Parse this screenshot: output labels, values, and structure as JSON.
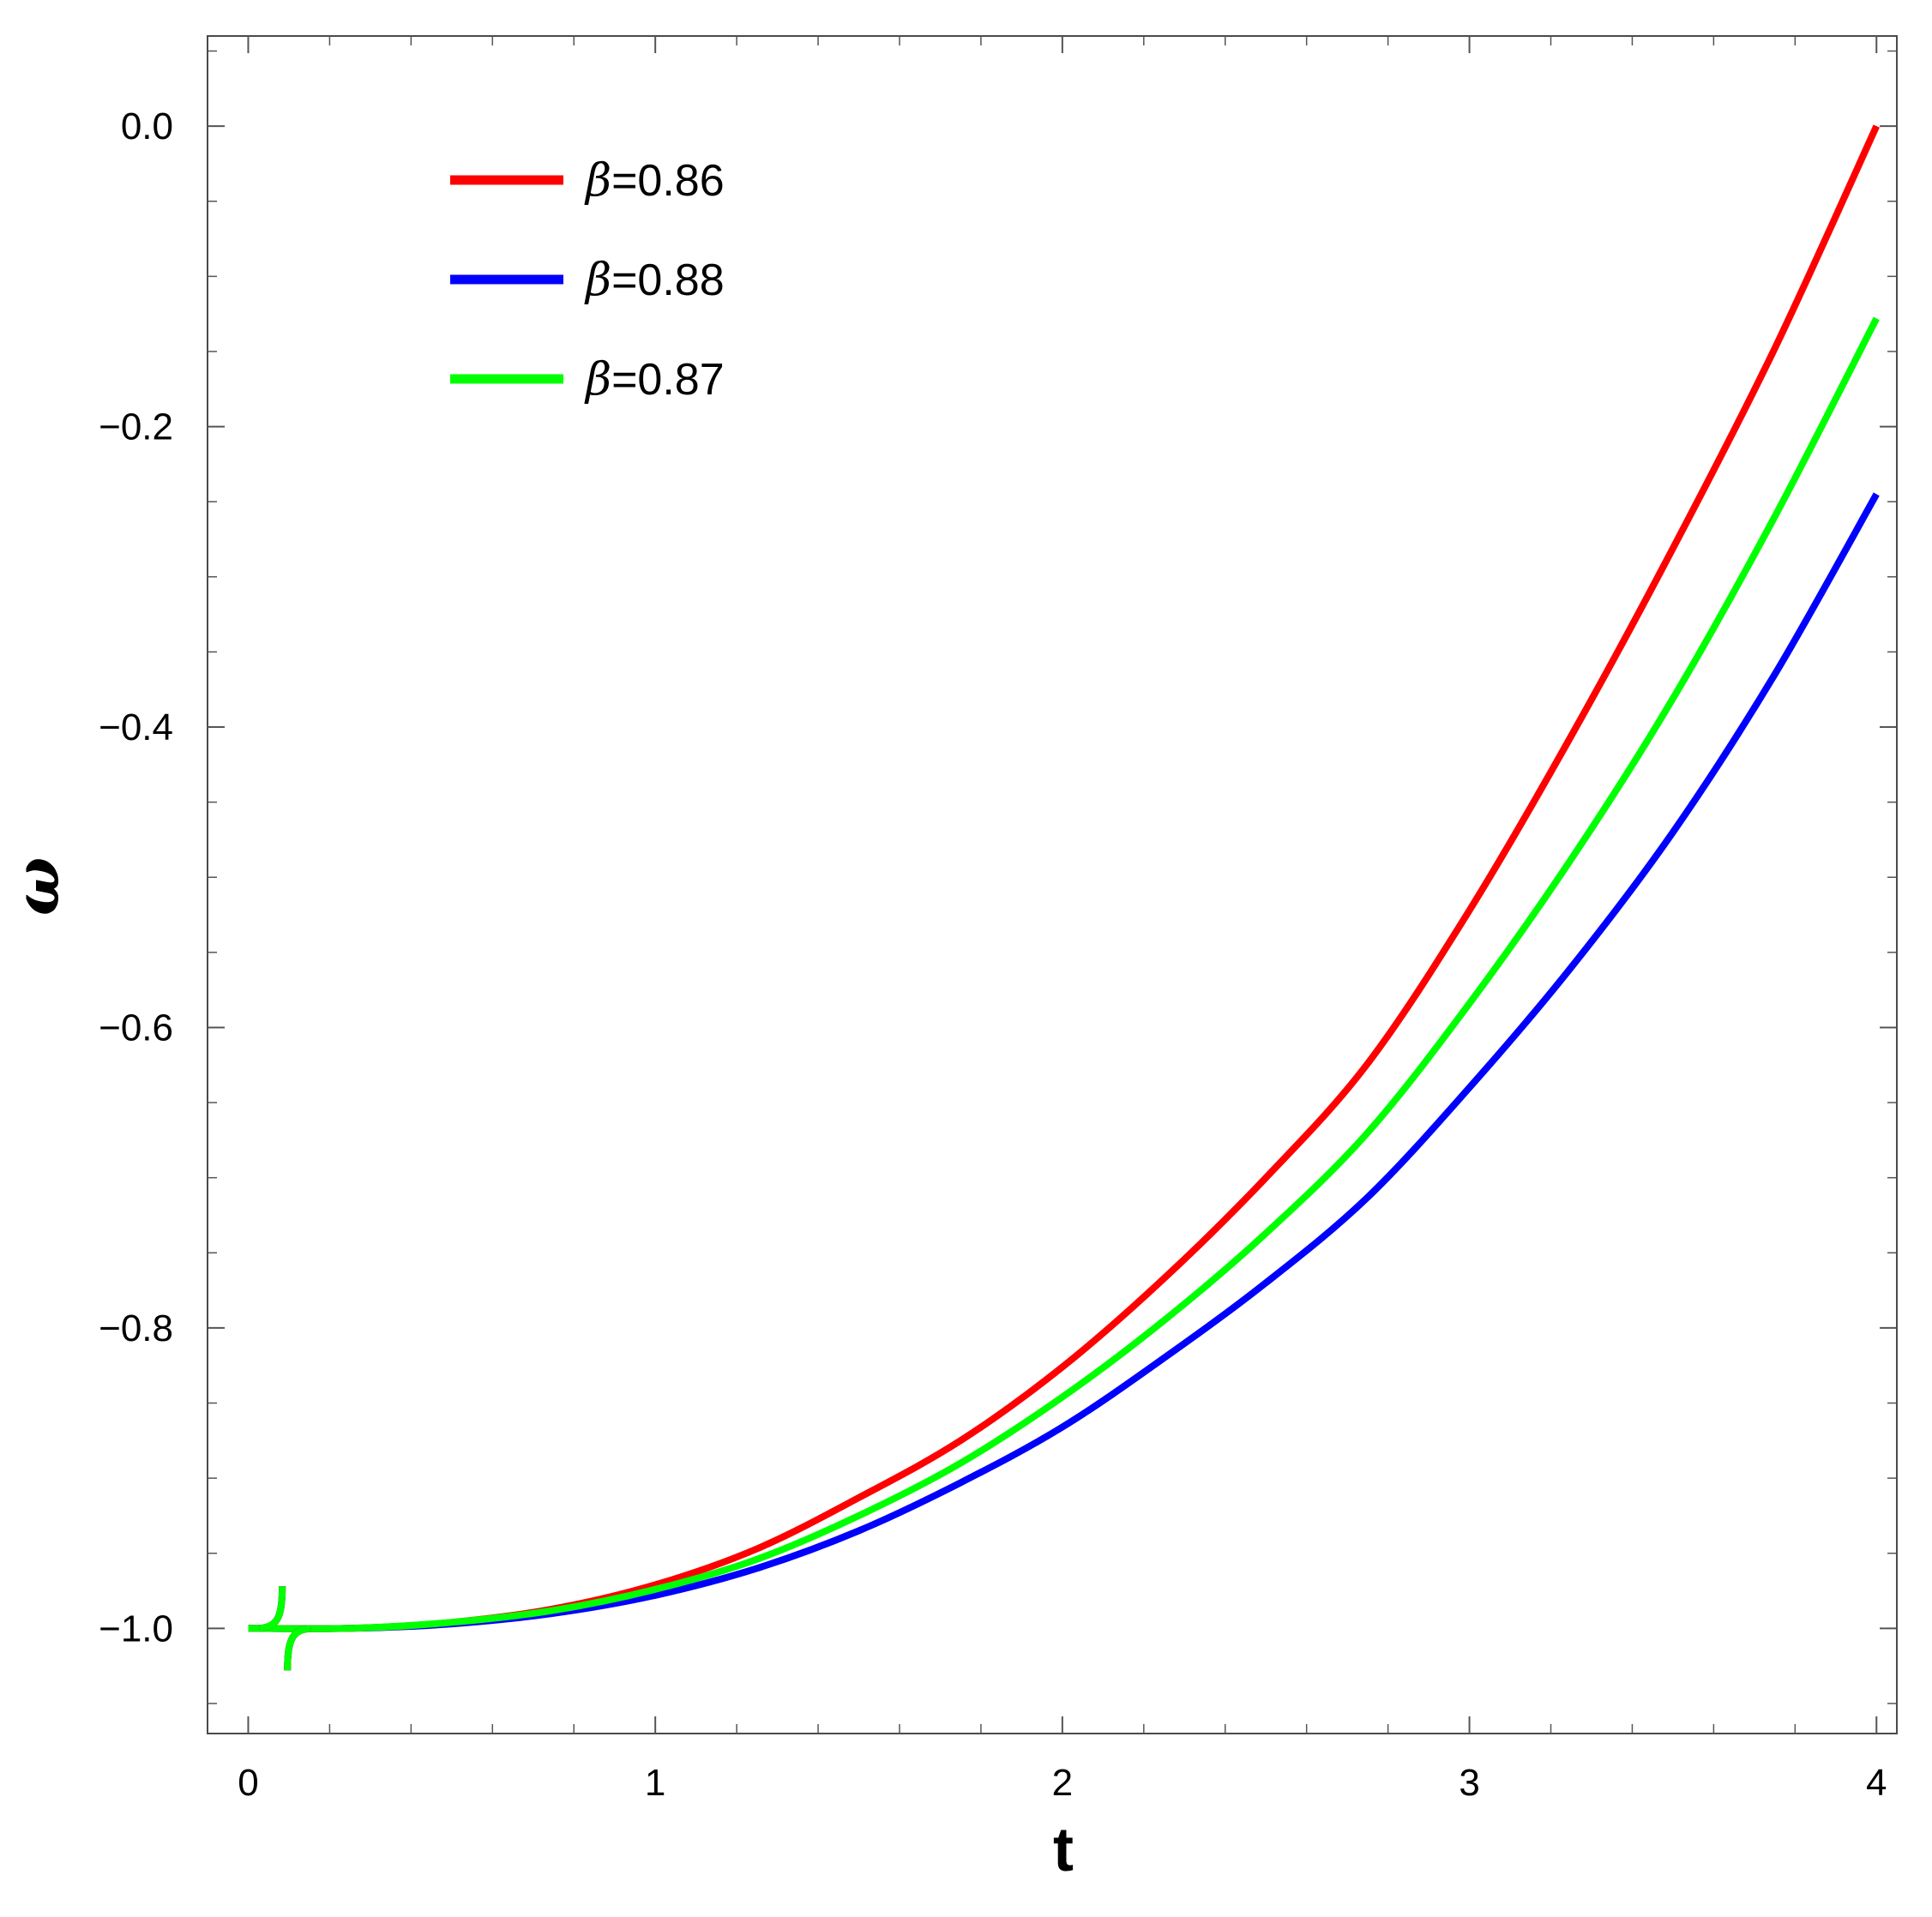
{
  "chart_data": {
    "type": "line",
    "xlabel": "t",
    "ylabel": "ω",
    "xlim": [
      -0.1,
      4.05
    ],
    "ylim": [
      -1.07,
      0.06
    ],
    "x_ticks": [
      0,
      1,
      2,
      3,
      4
    ],
    "x_tick_labels": [
      "0",
      "1",
      "2",
      "3",
      "4"
    ],
    "y_ticks": [
      0.0,
      -0.2,
      -0.4,
      -0.6,
      -0.8,
      -1.0
    ],
    "y_tick_labels": [
      "0.0",
      "−0.2",
      "−0.4",
      "−0.6",
      "−0.8",
      "−1.0"
    ],
    "grid": false,
    "frame": true,
    "legend_position": "top-left",
    "series": [
      {
        "name": "β=0.86",
        "legend_symbol": "β",
        "legend_value": "=0.86",
        "color": "#ff0000",
        "x": [
          0,
          0.25,
          0.5,
          0.75,
          1.0,
          1.25,
          1.5,
          1.75,
          2.0,
          2.25,
          2.5,
          2.75,
          3.0,
          3.25,
          3.5,
          3.75,
          4.0
        ],
        "y": [
          -1.0,
          -1.0,
          -0.996,
          -0.987,
          -0.971,
          -0.947,
          -0.913,
          -0.875,
          -0.826,
          -0.767,
          -0.7,
          -0.624,
          -0.522,
          -0.406,
          -0.281,
          -0.148,
          0.0
        ]
      },
      {
        "name": "β=0.88",
        "legend_symbol": "β",
        "legend_value": "=0.88",
        "color": "#0000ff",
        "x": [
          0,
          0.25,
          0.5,
          0.75,
          1.0,
          1.25,
          1.5,
          1.75,
          2.0,
          2.25,
          2.5,
          2.75,
          3.0,
          3.25,
          3.5,
          3.75,
          4.0
        ],
        "y": [
          -1.0,
          -1.0,
          -0.997,
          -0.99,
          -0.978,
          -0.96,
          -0.935,
          -0.903,
          -0.866,
          -0.82,
          -0.77,
          -0.713,
          -0.64,
          -0.56,
          -0.47,
          -0.365,
          -0.245
        ]
      },
      {
        "name": "β=0.87",
        "legend_symbol": "β",
        "legend_value": "=0.87",
        "color": "#00ff00",
        "x": [
          0,
          0.25,
          0.5,
          0.75,
          1.0,
          1.25,
          1.5,
          1.75,
          2.0,
          2.25,
          2.5,
          2.75,
          3.0,
          3.25,
          3.5,
          3.75,
          4.0
        ],
        "y": [
          -1.0,
          -1.0,
          -0.996,
          -0.988,
          -0.974,
          -0.954,
          -0.925,
          -0.89,
          -0.846,
          -0.795,
          -0.737,
          -0.67,
          -0.584,
          -0.488,
          -0.381,
          -0.26,
          -0.128
        ]
      }
    ]
  }
}
